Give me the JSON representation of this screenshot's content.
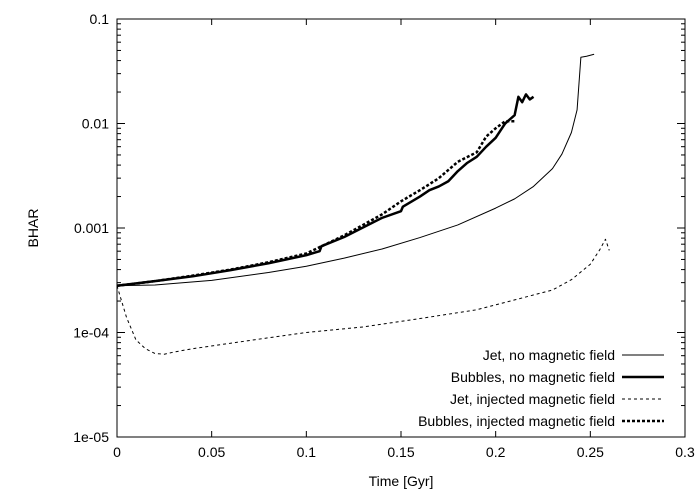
{
  "chart_data": {
    "type": "line",
    "xlabel": "Time [Gyr]",
    "ylabel": "BHAR",
    "xlim": [
      0,
      0.3
    ],
    "ylim": [
      1e-05,
      0.1
    ],
    "yscale": "log",
    "grid": false,
    "legend_position": "bottom-right",
    "x_ticks": [
      {
        "value": 0,
        "label": "0"
      },
      {
        "value": 0.05,
        "label": "0.05"
      },
      {
        "value": 0.1,
        "label": "0.1"
      },
      {
        "value": 0.15,
        "label": "0.15"
      },
      {
        "value": 0.2,
        "label": "0.2"
      },
      {
        "value": 0.25,
        "label": "0.25"
      },
      {
        "value": 0.3,
        "label": "0.3"
      }
    ],
    "y_ticks": [
      {
        "value": 1e-05,
        "label": "1e-05"
      },
      {
        "value": 0.0001,
        "label": "1e-04"
      },
      {
        "value": 0.001,
        "label": "0.001"
      },
      {
        "value": 0.01,
        "label": "0.01"
      },
      {
        "value": 0.1,
        "label": "0.1"
      }
    ],
    "series": [
      {
        "name": "Jet, no magnetic field",
        "style": "thin-solid",
        "color": "#000000",
        "x": [
          0,
          0.02,
          0.05,
          0.08,
          0.1,
          0.12,
          0.14,
          0.16,
          0.18,
          0.2,
          0.21,
          0.22,
          0.23,
          0.235,
          0.24,
          0.243,
          0.245,
          0.248,
          0.252
        ],
        "y": [
          0.00028,
          0.000285,
          0.000315,
          0.000375,
          0.00043,
          0.000515,
          0.00063,
          0.00081,
          0.00107,
          0.00155,
          0.0019,
          0.0025,
          0.0037,
          0.0051,
          0.0082,
          0.0135,
          0.043,
          0.044,
          0.046
        ]
      },
      {
        "name": "Bubbles, no magnetic field",
        "style": "thick-solid",
        "color": "#000000",
        "x": [
          0,
          0.02,
          0.04,
          0.06,
          0.08,
          0.1,
          0.107,
          0.108,
          0.12,
          0.14,
          0.15,
          0.151,
          0.16,
          0.165,
          0.17,
          0.175,
          0.18,
          0.185,
          0.19,
          0.195,
          0.2,
          0.205,
          0.21,
          0.212,
          0.214,
          0.216,
          0.218,
          0.22
        ],
        "y": [
          0.00028,
          0.00031,
          0.000345,
          0.000395,
          0.00046,
          0.00055,
          0.0006,
          0.00067,
          0.00082,
          0.00125,
          0.00145,
          0.0016,
          0.002,
          0.0023,
          0.0025,
          0.0028,
          0.0035,
          0.0042,
          0.0048,
          0.006,
          0.0073,
          0.01,
          0.012,
          0.018,
          0.016,
          0.019,
          0.017,
          0.018
        ]
      },
      {
        "name": "Jet, injected magnetic field",
        "style": "thin-dashed",
        "color": "#000000",
        "x": [
          0,
          0.005,
          0.01,
          0.015,
          0.02,
          0.025,
          0.03,
          0.04,
          0.06,
          0.08,
          0.1,
          0.13,
          0.16,
          0.19,
          0.21,
          0.23,
          0.24,
          0.25,
          0.255,
          0.258,
          0.26
        ],
        "y": [
          0.00028,
          0.00014,
          8.5e-05,
          7e-05,
          6.3e-05,
          6.2e-05,
          6.5e-05,
          7e-05,
          7.9e-05,
          8.9e-05,
          0.0001,
          0.000113,
          0.000136,
          0.000165,
          0.000205,
          0.000255,
          0.00032,
          0.00045,
          0.00062,
          0.00078,
          0.00061
        ]
      },
      {
        "name": "Bubbles, injected magnetic field",
        "style": "thick-dashed",
        "color": "#000000",
        "x": [
          0,
          0.02,
          0.04,
          0.06,
          0.08,
          0.1,
          0.12,
          0.14,
          0.15,
          0.16,
          0.17,
          0.18,
          0.19,
          0.195,
          0.2,
          0.205,
          0.21
        ],
        "y": [
          0.00028,
          0.00031,
          0.00035,
          0.0004,
          0.00047,
          0.00057,
          0.00085,
          0.00135,
          0.0018,
          0.0023,
          0.003,
          0.0043,
          0.0053,
          0.0075,
          0.009,
          0.0105,
          0.0105
        ]
      }
    ]
  }
}
